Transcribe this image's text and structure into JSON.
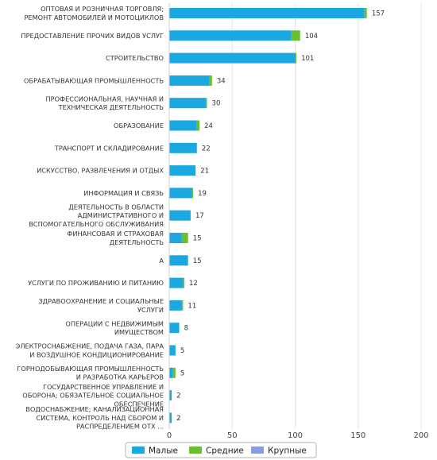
{
  "chart_data": {
    "type": "bar",
    "orientation": "horizontal",
    "stacked": true,
    "categories": [
      [
        "ОПТОВАЯ И РОЗНИЧНАЯ ТОРГОВЛЯ;",
        "РЕМОНТ АВТОМОБИЛЕЙ И МОТОЦИКЛОВ"
      ],
      [
        "ПРЕДОСТАВЛЕНИЕ ПРОЧИХ ВИДОВ УСЛУГ"
      ],
      [
        "СТРОИТЕЛЬСТВО"
      ],
      [
        "ОБРАБАТЫВАЮЩАЯ ПРОМЫШЛЕННОСТЬ"
      ],
      [
        "ПРОФЕССИОНАЛЬНАЯ, НАУЧНАЯ И",
        "ТЕХНИЧЕСКАЯ ДЕЯТЕЛЬНОСТЬ"
      ],
      [
        "ОБРАЗОВАНИЕ"
      ],
      [
        "ТРАНСПОРТ И СКЛАДИРОВАНИЕ"
      ],
      [
        "ИСКУССТВО, РАЗВЛЕЧЕНИЯ И ОТДЫХ"
      ],
      [
        "ИНФОРМАЦИЯ И СВЯЗЬ"
      ],
      [
        "ДЕЯТЕЛЬНОСТЬ В ОБЛАСТИ",
        "АДМИНИСТРАТИВНОГО И",
        "ВСПОМОГАТЕЛЬНОГО ОБСЛУЖИВАНИЯ"
      ],
      [
        "ФИНАНСОВАЯ И СТРАХОВАЯ",
        "ДЕЯТЕЛЬНОСТЬ"
      ],
      [
        "A"
      ],
      [
        "УСЛУГИ ПО ПРОЖИВАНИЮ И ПИТАНИЮ"
      ],
      [
        "ЗДРАВООХРАНЕНИЕ И СОЦИАЛЬНЫЕ",
        "УСЛУГИ"
      ],
      [
        "ОПЕРАЦИИ С НЕДВИЖИМЫМ",
        "ИМУЩЕСТВОМ"
      ],
      [
        "ЭЛЕКТРОСНАБЖЕНИЕ, ПОДАЧА ГАЗА, ПАРА",
        "И ВОЗДУШНОЕ КОНДИЦИОНИРОВАНИЕ"
      ],
      [
        "ГОРНОДОБЫВАЮЩАЯ ПРОМЫШЛЕННОСТЬ",
        "И РАЗРАБОТКА КАРЬЕРОВ"
      ],
      [
        "ГОСУДАРСТВЕННОЕ УПРАВЛЕНИЕ И",
        "ОБОРОНА; ОБЯЗАТЕЛЬНОЕ СОЦИАЛЬНОЕ",
        "ОБЕСПЕЧЕНИЕ"
      ],
      [
        "ВОДОСНАБЖЕНИЕ; КАНАЛИЗАЦИОННАЯ",
        "СИСТЕМА, КОНТРОЛЬ НАД СБОРОМ И",
        "РАСПРЕДЕЛЕНИЕМ ОТХ ..."
      ]
    ],
    "series": [
      {
        "name": "Малые",
        "color": "#1ba8e0",
        "values": [
          155,
          97,
          100,
          32,
          29,
          22,
          22,
          21,
          18,
          17,
          10,
          15,
          11,
          10,
          8,
          5,
          3,
          2,
          2
        ]
      },
      {
        "name": "Средние",
        "color": "#6abf2e",
        "values": [
          2,
          7,
          1,
          2,
          1,
          2,
          0,
          0,
          1,
          0,
          5,
          0,
          1,
          1,
          0,
          0,
          2,
          0,
          0
        ]
      },
      {
        "name": "Крупные",
        "color": "#8a9be0",
        "values": [
          0,
          0,
          0,
          0,
          0,
          0,
          0,
          0,
          0,
          0,
          0,
          0,
          0,
          0,
          0,
          0,
          0,
          0,
          0
        ]
      }
    ],
    "totals": [
      "157",
      "104",
      "101",
      "34",
      "30",
      "24",
      "22",
      "21",
      "19",
      "17",
      "15",
      "15",
      "12",
      "11",
      "8",
      "5",
      "5",
      "2",
      "2"
    ],
    "xlim": [
      0,
      200
    ],
    "xticks": [
      "0",
      "50",
      "100",
      "150",
      "200"
    ],
    "grid": true,
    "legend_position": "bottom"
  }
}
